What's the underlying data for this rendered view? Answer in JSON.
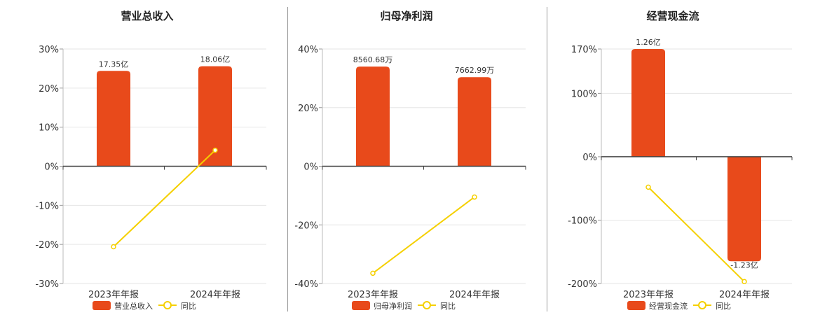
{
  "colors": {
    "bar": "#e84a1b",
    "line": "#f5d000",
    "grid": "#e6e6e6",
    "axis": "#444444"
  },
  "chart_data": [
    {
      "type": "bar",
      "title": "营业总收入",
      "categories": [
        "2023年年报",
        "2024年年报"
      ],
      "ylim": [
        -30,
        30
      ],
      "yticks": [
        30,
        20,
        10,
        0,
        -10,
        -20,
        -30
      ],
      "ytick_labels": [
        "30%",
        "20%",
        "10%",
        "0%",
        "-10%",
        "-20%",
        "-30%"
      ],
      "series": [
        {
          "name": "营业总收入",
          "kind": "bar",
          "values": [
            24.4,
            25.6
          ],
          "labels": [
            "17.35亿",
            "18.06亿"
          ]
        },
        {
          "name": "同比",
          "kind": "line",
          "values": [
            -20.6,
            4.1
          ]
        }
      ],
      "grid": true,
      "legend": "bottom"
    },
    {
      "type": "bar",
      "title": "归母净利润",
      "categories": [
        "2023年年报",
        "2024年年报"
      ],
      "ylim": [
        -40,
        40
      ],
      "yticks": [
        40,
        20,
        0,
        -20,
        -40
      ],
      "ytick_labels": [
        "40%",
        "20%",
        "0%",
        "-20%",
        "-40%"
      ],
      "series": [
        {
          "name": "归母净利润",
          "kind": "bar",
          "values": [
            34.0,
            30.4
          ],
          "labels": [
            "8560.68万",
            "7662.99万"
          ]
        },
        {
          "name": "同比",
          "kind": "line",
          "values": [
            -36.5,
            -10.5
          ]
        }
      ],
      "grid": true,
      "legend": "bottom"
    },
    {
      "type": "bar",
      "title": "经营现金流",
      "categories": [
        "2023年年报",
        "2024年年报"
      ],
      "ylim": [
        -200,
        170
      ],
      "yticks": [
        170,
        100,
        0,
        -100,
        -200
      ],
      "ytick_labels": [
        "170%",
        "100%",
        "0%",
        "-100%",
        "-200%"
      ],
      "series": [
        {
          "name": "经营现金流",
          "kind": "bar",
          "values": [
            170,
            -165
          ],
          "labels": [
            "1.26亿",
            "-1.23亿"
          ]
        },
        {
          "name": "同比",
          "kind": "line",
          "values": [
            -48,
            -197
          ]
        }
      ],
      "grid": true,
      "legend": "bottom"
    }
  ]
}
